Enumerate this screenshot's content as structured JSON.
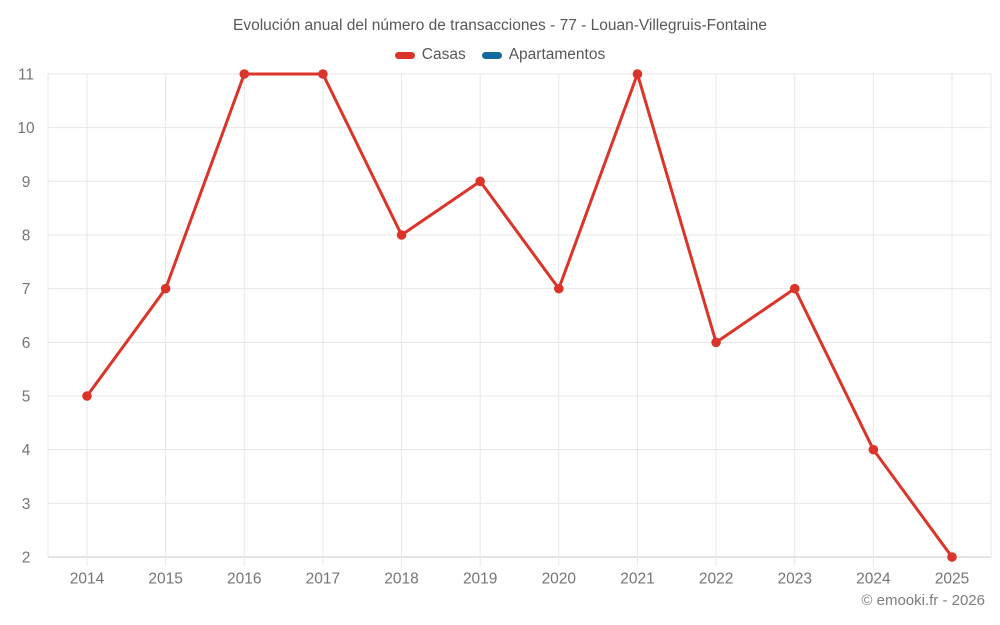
{
  "chart": {
    "title": "Evolución anual del número de transacciones - 77 - Louan-Villegruis-Fontaine",
    "copyright": "© emooki.fr - 2026"
  },
  "legend": {
    "items": [
      {
        "label": "Casas",
        "color": "#db352b"
      },
      {
        "label": "Apartamentos",
        "color": "#13699e"
      }
    ]
  },
  "chart_data": {
    "type": "line",
    "title": "Evolución anual del número de transacciones - 77 - Louan-Villegruis-Fontaine",
    "categories": [
      "2014",
      "2015",
      "2016",
      "2017",
      "2018",
      "2019",
      "2020",
      "2021",
      "2022",
      "2023",
      "2024",
      "2025"
    ],
    "series": [
      {
        "name": "Casas",
        "color": "#db352b",
        "values": [
          5,
          7,
          11,
          11,
          8,
          9,
          7,
          11,
          6,
          7,
          4,
          2
        ]
      },
      {
        "name": "Apartamentos",
        "color": "#13699e",
        "values": []
      }
    ],
    "xlabel": "",
    "ylabel": "",
    "ylim": [
      2,
      11
    ],
    "y_ticks": [
      2,
      3,
      4,
      5,
      6,
      7,
      8,
      9,
      10,
      11
    ],
    "grid": true,
    "legend_position": "top",
    "colors": {
      "grid_line": "#e7e7e7",
      "axis_line": "#c9c9c9",
      "tick_label": "#757575"
    }
  }
}
